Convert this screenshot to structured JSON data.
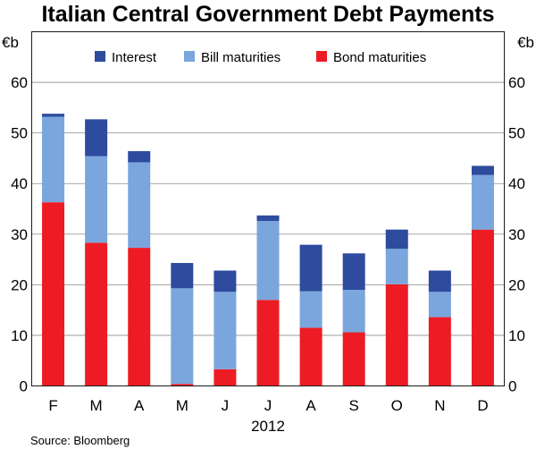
{
  "chart_data": {
    "type": "bar",
    "stacked": true,
    "title": "Italian Central Government Debt Payments",
    "y_unit_left": "€b",
    "y_unit_right": "€b",
    "xlabel": "2012",
    "ylim": [
      0,
      70
    ],
    "yticks": [
      0,
      10,
      20,
      30,
      40,
      50,
      60
    ],
    "grid": true,
    "legend_position": "top",
    "categories": [
      "F",
      "M",
      "A",
      "M",
      "J",
      "J",
      "A",
      "S",
      "O",
      "N",
      "D"
    ],
    "series": [
      {
        "name": "Bond maturities",
        "color": "#ed1c24",
        "values": [
          36.3,
          28.3,
          27.3,
          0.4,
          3.3,
          17.0,
          11.5,
          10.6,
          20.1,
          13.6,
          30.9
        ]
      },
      {
        "name": "Bill maturities",
        "color": "#7aa6dd",
        "values": [
          16.9,
          17.1,
          16.9,
          18.9,
          15.3,
          15.6,
          7.2,
          8.4,
          7.0,
          5.0,
          10.8
        ]
      },
      {
        "name": "Interest",
        "color": "#2e4b9e",
        "values": [
          0.6,
          7.3,
          2.2,
          5.0,
          4.2,
          1.1,
          9.2,
          7.2,
          3.8,
          4.2,
          1.8
        ]
      }
    ],
    "legend_order": [
      "Interest",
      "Bill maturities",
      "Bond maturities"
    ],
    "source": "Source: Bloomberg"
  }
}
